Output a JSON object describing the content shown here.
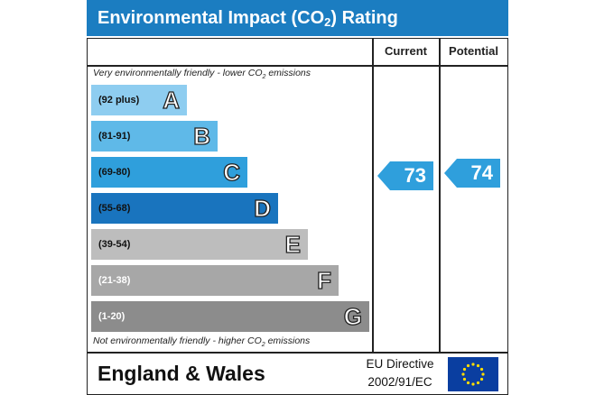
{
  "title": {
    "prefix": "Environmental Impact (CO",
    "sub": "2",
    "suffix": ") Rating"
  },
  "columns": {
    "current": "Current",
    "potential": "Potential"
  },
  "top_note": {
    "prefix": "Very environmentally friendly - lower CO",
    "sub": "2",
    "suffix": " emissions"
  },
  "bottom_note": {
    "prefix": "Not environmentally friendly - higher CO",
    "sub": "2",
    "suffix": " emissions"
  },
  "bands": [
    {
      "letter": "A",
      "range": "(92 plus)",
      "color": "#8ecdf0",
      "range_color": "#111111"
    },
    {
      "letter": "B",
      "range": "(81-91)",
      "color": "#5fb9e8",
      "range_color": "#111111"
    },
    {
      "letter": "C",
      "range": "(69-80)",
      "color": "#2f9fdc",
      "range_color": "#111111"
    },
    {
      "letter": "D",
      "range": "(55-68)",
      "color": "#1974be",
      "range_color": "#111111"
    },
    {
      "letter": "E",
      "range": "(39-54)",
      "color": "#bdbdbd",
      "range_color": "#111111"
    },
    {
      "letter": "F",
      "range": "(21-38)",
      "color": "#a7a7a7",
      "range_color": "#ffffff"
    },
    {
      "letter": "G",
      "range": "(1-20)",
      "color": "#8c8c8c",
      "range_color": "#ffffff"
    }
  ],
  "ratings": {
    "current": {
      "value": "73",
      "band": "C",
      "color": "#2f9fdc"
    },
    "potential": {
      "value": "74",
      "band": "C",
      "color": "#2f9fdc"
    }
  },
  "footer": {
    "region": "England & Wales",
    "directive_line1": "EU Directive",
    "directive_line2": "2002/91/EC"
  },
  "colors": {
    "title_bar": "#1b7dc1",
    "flag_blue": "#0a3ea0",
    "flag_stars": "#ffdd00"
  },
  "icons": {
    "flag": "eu-flag-icon"
  }
}
